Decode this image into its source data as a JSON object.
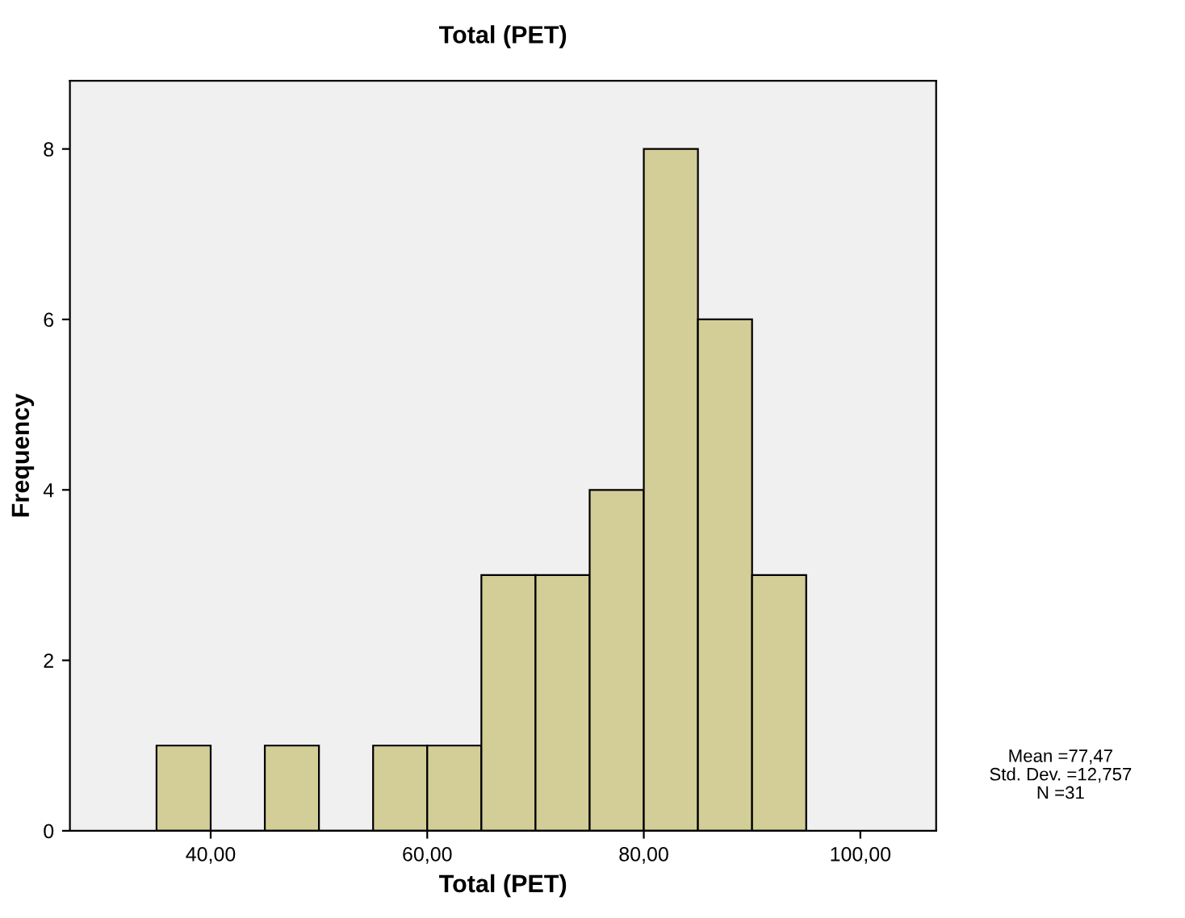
{
  "chart_data": {
    "type": "histogram",
    "title": "Total (PET)",
    "xlabel": "Total (PET)",
    "ylabel": "Frequency",
    "bins": [
      35,
      40,
      45,
      50,
      55,
      60,
      65,
      70,
      75,
      80,
      85,
      90,
      95
    ],
    "values": [
      1,
      0,
      1,
      0,
      1,
      1,
      3,
      3,
      4,
      8,
      6,
      3
    ],
    "color": "#d3ce97",
    "xlim": [
      27,
      107
    ],
    "ylim": [
      0,
      8.8
    ],
    "xticks": [
      {
        "value": 40,
        "label": "40,00"
      },
      {
        "value": 60,
        "label": "60,00"
      },
      {
        "value": 80,
        "label": "80,00"
      },
      {
        "value": 100,
        "label": "100,00"
      }
    ],
    "yticks": [
      0,
      2,
      4,
      6,
      8
    ],
    "grid": false,
    "annotations": [
      "Mean =77,47",
      "Std. Dev. =12,757",
      "N =31"
    ]
  }
}
